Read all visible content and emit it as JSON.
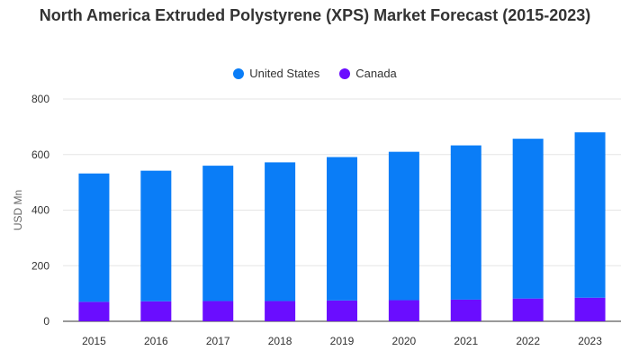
{
  "chart_data": {
    "type": "bar",
    "stacked": true,
    "title": "North America Extruded Polystyrene (XPS) Market Forecast (2015-2023)",
    "xlabel": "",
    "ylabel": "USD Mn",
    "ylim": [
      0,
      800
    ],
    "yticks": [
      "0",
      "200",
      "400",
      "600",
      "800"
    ],
    "grid": true,
    "legend_position": "top",
    "categories": [
      "2015",
      "2016",
      "2017",
      "2018",
      "2019",
      "2020",
      "2021",
      "2022",
      "2023"
    ],
    "series": [
      {
        "name": "Canada",
        "color": "#6a0dff",
        "values": [
          70,
          72,
          73,
          73,
          75,
          76,
          78,
          82,
          85
        ]
      },
      {
        "name": "United States",
        "color": "#0a7df7",
        "values": [
          462,
          470,
          487,
          499,
          516,
          534,
          555,
          575,
          595
        ]
      }
    ]
  },
  "legend": {
    "items": [
      {
        "label": "United States",
        "color": "#0a7df7"
      },
      {
        "label": "Canada",
        "color": "#6a0dff"
      }
    ]
  }
}
